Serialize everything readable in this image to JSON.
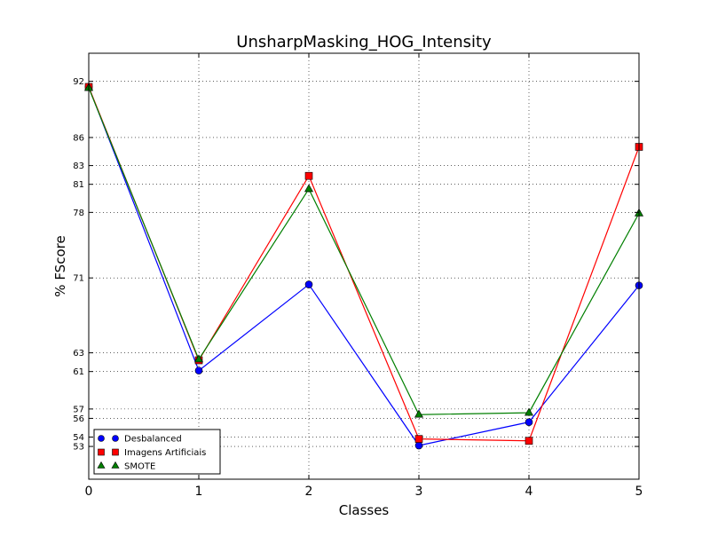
{
  "chart_data": {
    "type": "line",
    "title": "UnsharpMasking_HOG_Intensity",
    "xlabel": "Classes",
    "ylabel": "% FScore",
    "x": [
      0,
      1,
      2,
      3,
      4,
      5
    ],
    "xticks": [
      "0",
      "1",
      "2",
      "3",
      "4",
      "5"
    ],
    "xlim": [
      0,
      5
    ],
    "ylim": [
      49.5,
      95
    ],
    "yticks": [
      92,
      86,
      83,
      81,
      78,
      71,
      63,
      61,
      57,
      56,
      54,
      53
    ],
    "ytick_labels": [
      "92",
      "86",
      "83",
      "81",
      "78",
      "71",
      "63",
      "61",
      "57",
      "56",
      "54",
      "53"
    ],
    "grid": true,
    "legend_position": "lower-left",
    "series": [
      {
        "name": "Desbalanced",
        "color": "#0000ff",
        "marker": "circle",
        "values": [
          91.4,
          61.1,
          70.3,
          53.1,
          55.6,
          70.2
        ]
      },
      {
        "name": "Imagens Artificiais",
        "color": "#ff0000",
        "marker": "square",
        "values": [
          91.4,
          62.2,
          81.9,
          53.8,
          53.6,
          85.0
        ]
      },
      {
        "name": "SMOTE",
        "color": "#007f00",
        "marker": "triangle",
        "values": [
          91.3,
          62.3,
          80.5,
          56.4,
          56.6,
          77.9
        ]
      }
    ]
  }
}
